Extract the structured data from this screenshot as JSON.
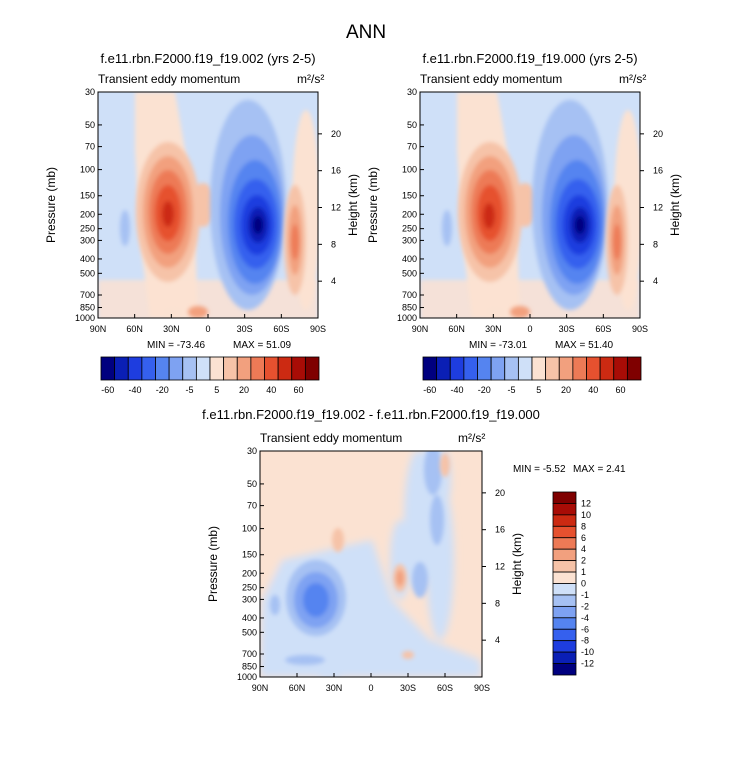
{
  "main_title": "ANN",
  "pressure_ticks": [
    "30",
    "50",
    "70",
    "100",
    "150",
    "200",
    "250",
    "300",
    "400",
    "500",
    "700",
    "850",
    "1000"
  ],
  "height_ticks_top": [
    "20",
    "16",
    "12",
    "8",
    "4"
  ],
  "height_ticks_bottom": [
    "20",
    "16",
    "12",
    "8",
    "4"
  ],
  "lat_ticks": [
    "90N",
    "60N",
    "30N",
    "0",
    "30S",
    "60S",
    "90S"
  ],
  "pressure_label": "Pressure (mb)",
  "height_label": "Height (km)",
  "field_label": "Transient eddy momentum",
  "units": "m²/s²",
  "colorbar_top_labels": [
    "-60",
    "-40",
    "-20",
    "-5",
    "5",
    "20",
    "40",
    "60"
  ],
  "colorbar_diff_labels": [
    "12",
    "10",
    "8",
    "6",
    "4",
    "2",
    "1",
    "0",
    "-1",
    "-2",
    "-4",
    "-6",
    "-8",
    "-10",
    "-12"
  ],
  "colors": {
    "full": [
      "#00007f",
      "#0a1fb5",
      "#1e3ddf",
      "#3560ee",
      "#5584f0",
      "#7ea2f2",
      "#a6c1f3",
      "#cfe0f8",
      "#fbe2d2",
      "#f6c3a8",
      "#f2a07e",
      "#ed7a56",
      "#e6512f",
      "#cc2a12",
      "#a80c06",
      "#7f0000"
    ],
    "diff": [
      "#00007f",
      "#0a1fb5",
      "#1e3ddf",
      "#3560ee",
      "#5584f0",
      "#7ea2f2",
      "#a6c1f3",
      "#cfe0f8",
      "#fbe2d2",
      "#f6c3a8",
      "#f2a07e",
      "#ed7a56",
      "#e6512f",
      "#cc2a12",
      "#a80c06",
      "#7f0000"
    ]
  },
  "chart_data": [
    {
      "type": "heatmap",
      "title": "f.e11.rbn.F2000.f19_f19.002 (yrs 2-5)",
      "field": "Transient eddy momentum",
      "units": "m²/s²",
      "xlabel": "",
      "ylabel": "Pressure (mb)",
      "ylabel_right": "Height (km)",
      "x_ticks": [
        "90N",
        "60N",
        "30N",
        "0",
        "30S",
        "60S",
        "90S"
      ],
      "y_range": [
        1000,
        30
      ],
      "levels": [
        -60,
        -50,
        -40,
        -30,
        -20,
        -10,
        -5,
        0,
        5,
        10,
        20,
        30,
        40,
        50,
        60
      ],
      "min": "-73.46",
      "max": "51.09",
      "min_label": "MIN = -73.46",
      "max_label": "MAX = 51.09",
      "features": [
        {
          "kind": "positive",
          "lat": 32,
          "pressure": 200,
          "value": 51.09
        },
        {
          "kind": "negative",
          "lat": -40,
          "pressure": 250,
          "value": -73.46
        },
        {
          "kind": "positive",
          "lat": -65,
          "pressure": 300,
          "value": 20
        }
      ]
    },
    {
      "type": "heatmap",
      "title": "f.e11.rbn.F2000.f19_f19.000 (yrs 2-5)",
      "field": "Transient eddy momentum",
      "units": "m²/s²",
      "xlabel": "",
      "ylabel": "Pressure (mb)",
      "ylabel_right": "Height (km)",
      "x_ticks": [
        "90N",
        "60N",
        "30N",
        "0",
        "30S",
        "60S",
        "90S"
      ],
      "y_range": [
        1000,
        30
      ],
      "levels": [
        -60,
        -50,
        -40,
        -30,
        -20,
        -10,
        -5,
        0,
        5,
        10,
        20,
        30,
        40,
        50,
        60
      ],
      "min": "-73.01",
      "max": "51.40",
      "min_label": "MIN = -73.01",
      "max_label": "MAX = 51.40",
      "features": [
        {
          "kind": "positive",
          "lat": 32,
          "pressure": 200,
          "value": 51.4
        },
        {
          "kind": "negative",
          "lat": -40,
          "pressure": 250,
          "value": -73.01
        },
        {
          "kind": "positive",
          "lat": -65,
          "pressure": 300,
          "value": 20
        }
      ]
    },
    {
      "type": "heatmap",
      "title": "f.e11.rbn.F2000.f19_f19.002 - f.e11.rbn.F2000.f19_f19.000",
      "field": "Transient eddy momentum",
      "units": "m²/s²",
      "xlabel": "",
      "ylabel": "Pressure (mb)",
      "ylabel_right": "Height (km)",
      "x_ticks": [
        "90N",
        "60N",
        "30N",
        "0",
        "30S",
        "60S",
        "90S"
      ],
      "y_range": [
        1000,
        30
      ],
      "levels": [
        -12,
        -10,
        -8,
        -6,
        -4,
        -2,
        -1,
        0,
        1,
        2,
        4,
        6,
        8,
        10,
        12
      ],
      "min": "-5.52",
      "max": "2.41",
      "min_label": "MIN = -5.52",
      "max_label": "MAX = 2.41",
      "features": [
        {
          "kind": "negative",
          "lat": 47,
          "pressure": 300,
          "value": -5.52
        },
        {
          "kind": "positive",
          "lat": -20,
          "pressure": 230,
          "value": 2.41
        }
      ]
    }
  ]
}
